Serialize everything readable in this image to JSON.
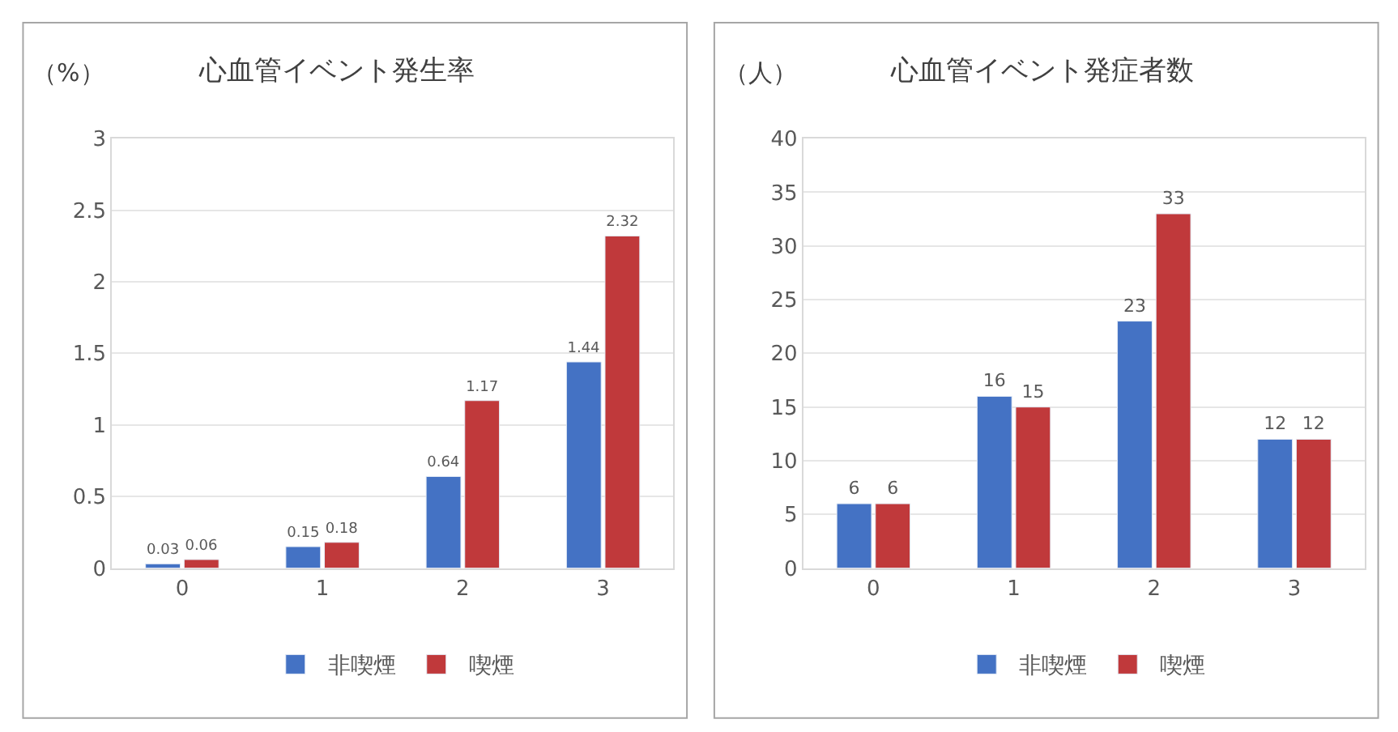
{
  "chart_data": [
    {
      "type": "bar",
      "title": "心血管イベント発生率",
      "ylabel": "（%）",
      "categories": [
        "0",
        "1",
        "2",
        "3"
      ],
      "series": [
        {
          "name": "非喫煙",
          "color": "#4472c4",
          "values": [
            0.03,
            0.15,
            0.64,
            1.44
          ]
        },
        {
          "name": "喫煙",
          "color": "#c0393b",
          "values": [
            0.06,
            0.18,
            1.17,
            2.32
          ]
        }
      ],
      "ylim": [
        0,
        3
      ],
      "yticks": [
        0,
        0.5,
        1,
        1.5,
        2,
        2.5,
        3
      ],
      "grid": "y",
      "legend": "bottom",
      "data_labels": true
    },
    {
      "type": "bar",
      "title": "心血管イベント発症者数",
      "ylabel": "（人）",
      "categories": [
        "0",
        "1",
        "2",
        "3"
      ],
      "series": [
        {
          "name": "非喫煙",
          "color": "#4472c4",
          "values": [
            6,
            16,
            23,
            12
          ]
        },
        {
          "name": "喫煙",
          "color": "#c0393b",
          "values": [
            6,
            15,
            33,
            12
          ]
        }
      ],
      "ylim": [
        0,
        40
      ],
      "yticks": [
        0,
        5,
        10,
        15,
        20,
        25,
        30,
        35,
        40
      ],
      "grid": "y",
      "legend": "bottom",
      "data_labels": true
    }
  ]
}
